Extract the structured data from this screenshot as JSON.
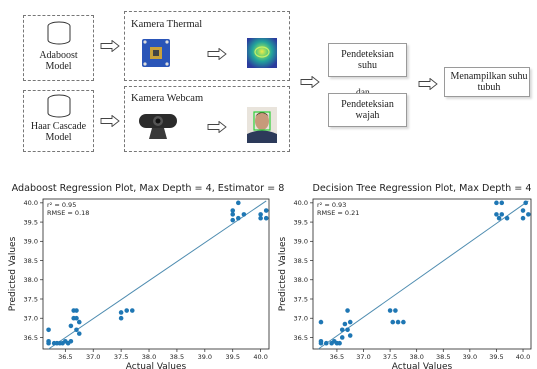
{
  "diagram": {
    "model_adaboost": "Adaboost\nModel",
    "model_haar": "Haar Cascade\nModel",
    "kamera_thermal": "Kamera Thermal",
    "kamera_webcam": "Kamera Webcam",
    "pendeteksian_suhu": "Pendeteksian\nsuhu",
    "dan": "dan",
    "pendeteksian_wajah": "Pendeteksian\nwajah",
    "menampilkan": "Menampilkan suhu\ntubuh",
    "arrow_color": "#444444"
  },
  "chart_data": [
    {
      "type": "scatter",
      "title": "Adaboost Regression Plot, Max Depth = 4, Estimator = 8",
      "xlabel": "Actual Values",
      "ylabel": "Predicted Values",
      "annotation_r2": "r² = 0.95",
      "annotation_rmse": "RMSE = 0.18",
      "xlim": [
        36.1,
        40.15
      ],
      "ylim": [
        36.2,
        40.1
      ],
      "xticks": [
        "36.5",
        "37.0",
        "37.5",
        "38.0",
        "38.5",
        "39.0",
        "39.5",
        "40.0"
      ],
      "yticks": [
        "36.5",
        "37.0",
        "37.5",
        "38.0",
        "38.5",
        "39.0",
        "39.5",
        "40.0"
      ],
      "fit_line": {
        "x": [
          36.2,
          40.1
        ],
        "y": [
          36.2,
          40.05
        ]
      },
      "points": [
        [
          36.2,
          36.7
        ],
        [
          36.2,
          36.4
        ],
        [
          36.2,
          36.35
        ],
        [
          36.3,
          36.35
        ],
        [
          36.35,
          36.35
        ],
        [
          36.4,
          36.35
        ],
        [
          36.45,
          36.35
        ],
        [
          36.5,
          36.4
        ],
        [
          36.55,
          36.35
        ],
        [
          36.6,
          36.4
        ],
        [
          36.6,
          36.8
        ],
        [
          36.65,
          37.0
        ],
        [
          36.65,
          37.2
        ],
        [
          36.7,
          36.7
        ],
        [
          36.7,
          37.0
        ],
        [
          36.7,
          37.2
        ],
        [
          36.75,
          36.6
        ],
        [
          36.75,
          36.9
        ],
        [
          37.5,
          37.0
        ],
        [
          37.5,
          37.15
        ],
        [
          37.6,
          37.2
        ],
        [
          37.7,
          37.2
        ],
        [
          39.5,
          39.55
        ],
        [
          39.5,
          39.7
        ],
        [
          39.5,
          39.8
        ],
        [
          39.6,
          39.6
        ],
        [
          39.6,
          40.0
        ],
        [
          39.7,
          39.7
        ],
        [
          40.0,
          39.6
        ],
        [
          40.0,
          39.7
        ],
        [
          40.1,
          39.6
        ],
        [
          40.1,
          39.8
        ]
      ],
      "point_color": "#1f77b4",
      "line_color": "#4e8cb0"
    },
    {
      "type": "scatter",
      "title": "Decision Tree Regression Plot, Max Depth = 4",
      "xlabel": "Actual Values",
      "ylabel": "Predicted Values",
      "annotation_r2": "r² = 0.93",
      "annotation_rmse": "RMSE = 0.21",
      "xlim": [
        36.05,
        40.15
      ],
      "ylim": [
        36.2,
        40.1
      ],
      "xticks": [
        "36.5",
        "37.0",
        "37.5",
        "38.0",
        "38.5",
        "39.0",
        "39.5",
        "40.0"
      ],
      "yticks": [
        "36.5",
        "37.0",
        "37.5",
        "38.0",
        "38.5",
        "39.0",
        "39.5",
        "40.0"
      ],
      "fit_line": {
        "x": [
          36.15,
          40.1
        ],
        "y": [
          36.2,
          40.05
        ]
      },
      "points": [
        [
          36.2,
          36.9
        ],
        [
          36.2,
          36.4
        ],
        [
          36.2,
          36.35
        ],
        [
          36.3,
          36.35
        ],
        [
          36.4,
          36.35
        ],
        [
          36.45,
          36.4
        ],
        [
          36.5,
          36.35
        ],
        [
          36.55,
          36.35
        ],
        [
          36.6,
          36.5
        ],
        [
          36.6,
          36.7
        ],
        [
          36.65,
          36.85
        ],
        [
          36.7,
          37.2
        ],
        [
          36.7,
          36.7
        ],
        [
          36.75,
          36.9
        ],
        [
          36.75,
          36.55
        ],
        [
          37.5,
          37.2
        ],
        [
          37.55,
          36.9
        ],
        [
          37.6,
          37.2
        ],
        [
          37.65,
          36.9
        ],
        [
          37.75,
          36.9
        ],
        [
          39.5,
          39.7
        ],
        [
          39.5,
          40.0
        ],
        [
          39.55,
          39.6
        ],
        [
          39.6,
          40.0
        ],
        [
          39.6,
          39.7
        ],
        [
          39.7,
          39.6
        ],
        [
          40.0,
          39.8
        ],
        [
          40.0,
          39.6
        ],
        [
          40.05,
          40.0
        ],
        [
          40.1,
          39.7
        ]
      ],
      "point_color": "#1f77b4",
      "line_color": "#4e8cb0"
    }
  ]
}
